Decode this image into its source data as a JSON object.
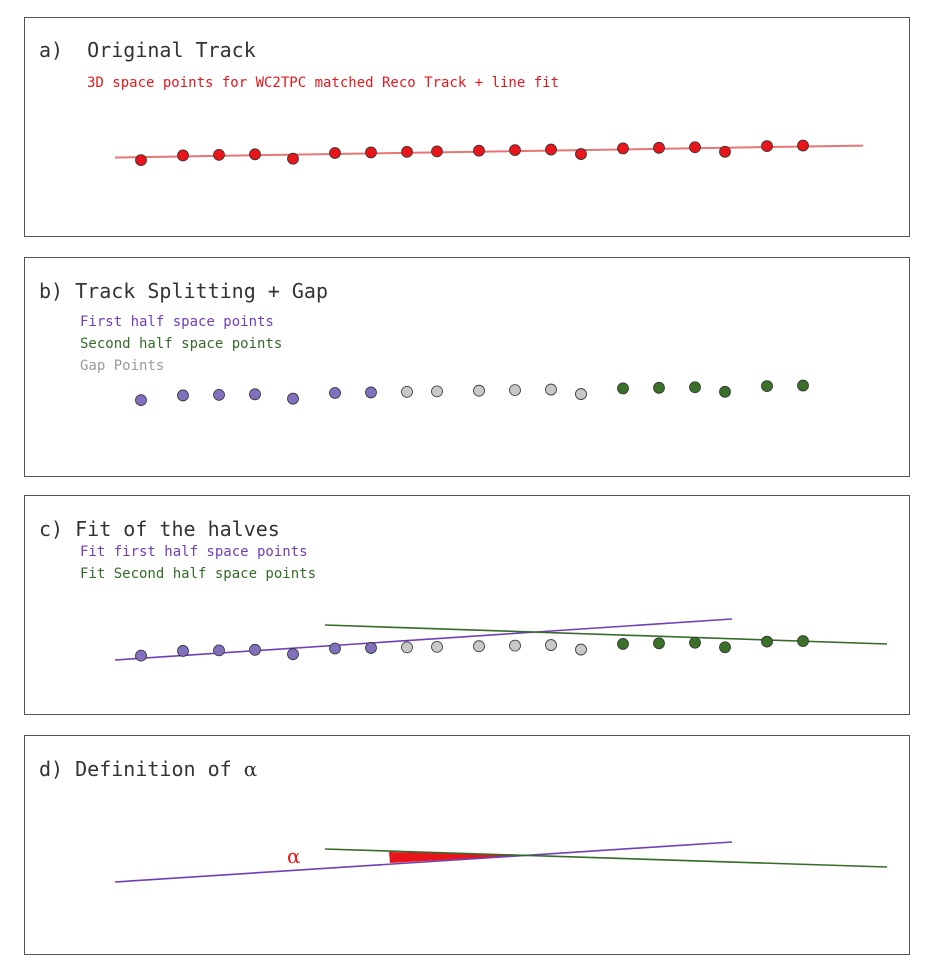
{
  "colors": {
    "red": "#e8161b",
    "fit_red": "#e87575",
    "purple": "#6f3fb8",
    "purple_dot": "#8070bd",
    "green": "#356b2a",
    "green_dot": "#3a7028",
    "gray_dot": "#c8c8c8",
    "gray_text": "#9a9a9a"
  },
  "points": {
    "first_half": 7,
    "gap": 6,
    "second_half": 6,
    "total": 19
  },
  "panel_a": {
    "title": "a)  Original Track",
    "legend": "3D space points for WC2TPC matched Reco Track + line fit"
  },
  "panel_b": {
    "title": "b) Track Splitting + Gap",
    "legend_first": "First half space points",
    "legend_second": "Second half space points",
    "legend_gap": "Gap Points"
  },
  "panel_c": {
    "title": "c) Fit of the halves",
    "legend_first": "Fit first half space points",
    "legend_second": "Fit Second half space points"
  },
  "panel_d": {
    "title_prefix": "d) Definition of ",
    "title_symbol": "α",
    "alpha_label": "α"
  }
}
